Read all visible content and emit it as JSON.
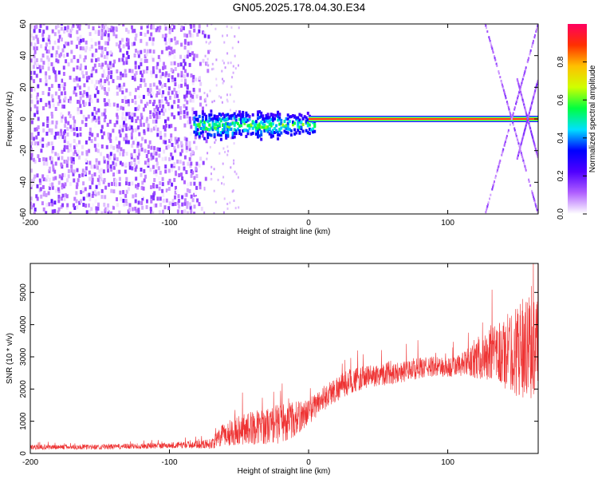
{
  "title": "GN05.2025.178.04.30.E34",
  "chart_data": [
    {
      "type": "heatmap",
      "xlabel": "Height of straight line (km)",
      "ylabel": "Frequency (Hz)",
      "xlim": [
        -200,
        165
      ],
      "ylim": [
        -60,
        60
      ],
      "x_ticks": [
        -200,
        -100,
        0,
        100
      ],
      "y_ticks": [
        -60,
        -40,
        -20,
        0,
        20,
        40,
        60
      ],
      "colorbar": {
        "label": "Normalized spectral amplitude",
        "range": [
          0,
          1
        ],
        "ticks": [
          0.0,
          0.2,
          0.4,
          0.6,
          0.8
        ],
        "tick_labels": [
          "0.0",
          "0.2",
          "0.4",
          "0.6",
          "0.8"
        ],
        "colors": [
          "#ffffff",
          "#b060ff",
          "#5000ff",
          "#0000ff",
          "#00e0ff",
          "#00ff40",
          "#d0ff00",
          "#ffc000",
          "#ff3000",
          "#ff0060"
        ]
      },
      "regions": [
        {
          "feature": "broadband noise",
          "x": [
            -200,
            -70
          ],
          "y": [
            -60,
            60
          ],
          "amplitude": [
            0.0,
            0.15
          ]
        },
        {
          "feature": "scattered energy",
          "x": [
            -82,
            5
          ],
          "y": [
            -12,
            8
          ],
          "amplitude": [
            0.2,
            0.6
          ]
        },
        {
          "feature": "constant tone",
          "x": [
            0,
            165
          ],
          "y": [
            0,
            0
          ],
          "amplitude": 0.95
        },
        {
          "feature": "aliased sweep",
          "x": [
            125,
            165
          ],
          "y": [
            -60,
            60
          ],
          "amplitude": [
            0.05,
            0.2
          ]
        }
      ]
    },
    {
      "type": "line",
      "xlabel": "Height of straight line (km)",
      "ylabel": "SNR (10 * v/v)",
      "xlim": [
        -200,
        165
      ],
      "ylim": [
        0,
        5900
      ],
      "x_ticks": [
        -200,
        -100,
        0,
        100
      ],
      "y_ticks": [
        0,
        1000,
        2000,
        3000,
        4000,
        5000
      ],
      "color": "#ee3333",
      "x": [
        -200,
        -150,
        -100,
        -80,
        -70,
        -60,
        -50,
        -40,
        -30,
        -20,
        -10,
        0,
        10,
        20,
        30,
        40,
        50,
        60,
        70,
        80,
        90,
        100,
        110,
        120,
        130,
        140,
        150,
        160,
        165
      ],
      "y_center": [
        200,
        200,
        250,
        280,
        300,
        600,
        750,
        800,
        850,
        950,
        1050,
        1300,
        1700,
        2000,
        2250,
        2350,
        2450,
        2500,
        2550,
        2650,
        2700,
        2650,
        2750,
        2900,
        3000,
        3100,
        3200,
        3300,
        3300
      ],
      "y_spread": [
        100,
        100,
        120,
        150,
        200,
        500,
        600,
        650,
        700,
        800,
        700,
        500,
        500,
        500,
        500,
        450,
        450,
        450,
        400,
        400,
        400,
        400,
        450,
        700,
        1000,
        1400,
        1800,
        2000,
        2000
      ]
    }
  ]
}
